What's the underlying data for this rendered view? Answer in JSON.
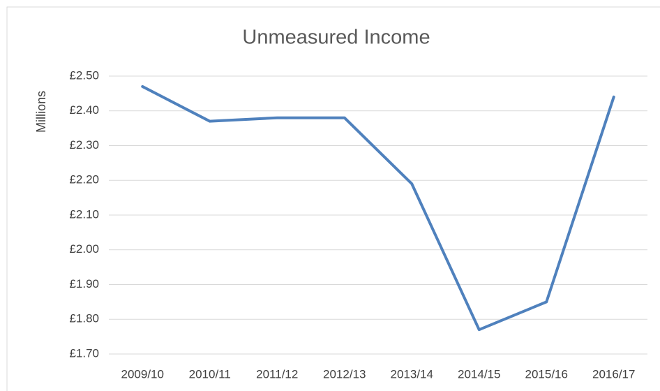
{
  "chart_data": {
    "type": "line",
    "title": "Unmeasured Income",
    "y_label": "Millions",
    "categories": [
      "2009/10",
      "2010/11",
      "2011/12",
      "2012/13",
      "2013/14",
      "2014/15",
      "2015/16",
      "2016/17"
    ],
    "series": [
      {
        "name": "Unmeasured Income",
        "color": "#4f81bd",
        "values": [
          2.47,
          2.37,
          2.38,
          2.38,
          2.19,
          1.77,
          1.85,
          2.44
        ]
      }
    ],
    "ylim": [
      1.7,
      2.5
    ],
    "yticks": [
      {
        "value": 1.7,
        "label": "£1.70"
      },
      {
        "value": 1.8,
        "label": "£1.80"
      },
      {
        "value": 1.9,
        "label": "£1.90"
      },
      {
        "value": 2.0,
        "label": "£2.00"
      },
      {
        "value": 2.1,
        "label": "£2.10"
      },
      {
        "value": 2.2,
        "label": "£2.20"
      },
      {
        "value": 2.3,
        "label": "£2.30"
      },
      {
        "value": 2.4,
        "label": "£2.40"
      },
      {
        "value": 2.5,
        "label": "£2.50"
      }
    ],
    "grid": true
  }
}
